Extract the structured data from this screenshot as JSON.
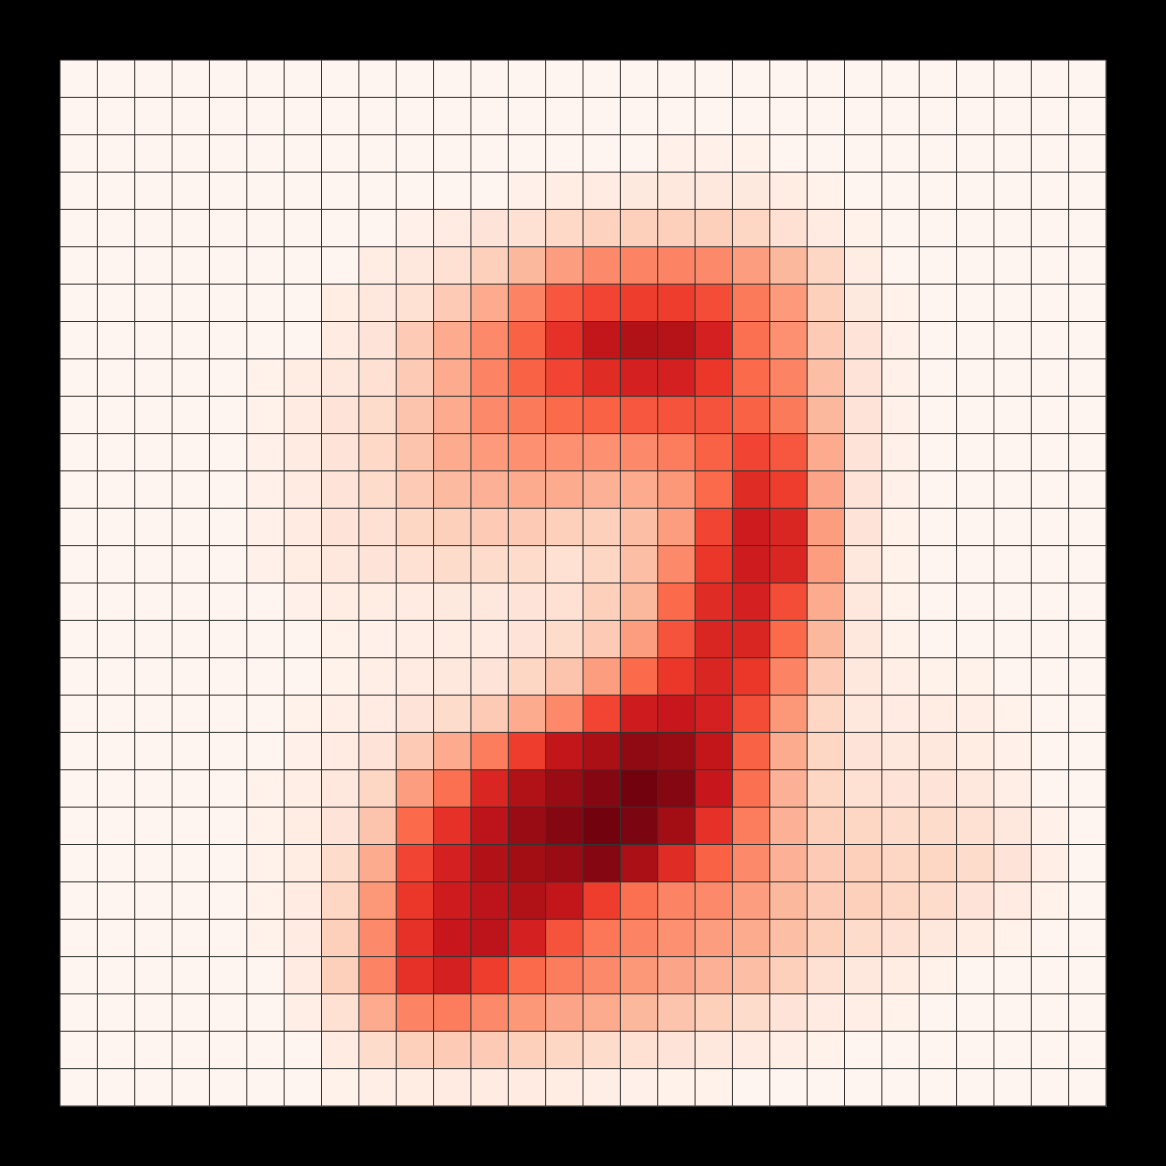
{
  "chart_data": {
    "type": "heatmap",
    "title": "",
    "xlabel": "",
    "ylabel": "",
    "rows": 28,
    "cols": 28,
    "grid": true,
    "colormap": "Reds",
    "value_range": [
      0,
      1
    ],
    "values": [
      [
        0,
        0,
        0,
        0,
        0,
        0,
        0,
        0,
        0,
        0,
        0,
        0,
        0,
        0,
        0,
        0,
        0,
        0,
        0,
        0,
        0,
        0,
        0,
        0,
        0,
        0,
        0,
        0
      ],
      [
        0,
        0,
        0,
        0,
        0,
        0,
        0,
        0,
        0,
        0,
        0,
        0,
        0,
        0,
        0,
        0,
        0,
        0,
        0,
        0,
        0,
        0,
        0,
        0,
        0,
        0,
        0,
        0
      ],
      [
        0,
        0,
        0,
        0,
        0,
        0,
        0,
        0,
        0,
        0,
        0,
        0,
        0,
        0,
        0,
        0,
        0.03,
        0.03,
        0.02,
        0,
        0,
        0,
        0,
        0,
        0,
        0,
        0,
        0
      ],
      [
        0,
        0,
        0,
        0,
        0,
        0,
        0,
        0,
        0,
        0,
        0,
        0,
        0.03,
        0.05,
        0.06,
        0.07,
        0.08,
        0.08,
        0.07,
        0.05,
        0.02,
        0,
        0,
        0,
        0,
        0,
        0,
        0
      ],
      [
        0,
        0,
        0,
        0,
        0,
        0,
        0,
        0,
        0,
        0.03,
        0.06,
        0.1,
        0.12,
        0.15,
        0.17,
        0.18,
        0.18,
        0.18,
        0.16,
        0.12,
        0.06,
        0.02,
        0,
        0,
        0,
        0,
        0,
        0
      ],
      [
        0,
        0,
        0,
        0,
        0,
        0,
        0,
        0,
        0.05,
        0.08,
        0.12,
        0.18,
        0.26,
        0.34,
        0.4,
        0.42,
        0.42,
        0.4,
        0.34,
        0.26,
        0.16,
        0.05,
        0,
        0,
        0,
        0,
        0,
        0
      ],
      [
        0,
        0,
        0,
        0,
        0,
        0,
        0,
        0.05,
        0.08,
        0.12,
        0.2,
        0.3,
        0.42,
        0.55,
        0.6,
        0.62,
        0.62,
        0.58,
        0.45,
        0.35,
        0.18,
        0.07,
        0.02,
        0,
        0,
        0,
        0,
        0
      ],
      [
        0,
        0,
        0,
        0,
        0,
        0,
        0,
        0.06,
        0.1,
        0.2,
        0.3,
        0.4,
        0.52,
        0.66,
        0.78,
        0.84,
        0.82,
        0.72,
        0.48,
        0.38,
        0.2,
        0.1,
        0.03,
        0,
        0,
        0,
        0,
        0
      ],
      [
        0,
        0,
        0,
        0,
        0,
        0.02,
        0.05,
        0.08,
        0.12,
        0.2,
        0.3,
        0.42,
        0.52,
        0.6,
        0.68,
        0.72,
        0.72,
        0.64,
        0.5,
        0.42,
        0.24,
        0.1,
        0.03,
        0,
        0,
        0,
        0,
        0
      ],
      [
        0,
        0,
        0,
        0,
        0,
        0.02,
        0.06,
        0.1,
        0.14,
        0.22,
        0.3,
        0.4,
        0.45,
        0.5,
        0.52,
        0.55,
        0.56,
        0.56,
        0.52,
        0.45,
        0.26,
        0.1,
        0.03,
        0,
        0,
        0,
        0,
        0
      ],
      [
        0,
        0,
        0,
        0,
        0,
        0.03,
        0.06,
        0.1,
        0.15,
        0.22,
        0.3,
        0.35,
        0.38,
        0.38,
        0.38,
        0.4,
        0.44,
        0.52,
        0.6,
        0.55,
        0.3,
        0.1,
        0.03,
        0,
        0,
        0,
        0,
        0
      ],
      [
        0,
        0,
        0,
        0,
        0,
        0.03,
        0.06,
        0.1,
        0.14,
        0.2,
        0.25,
        0.28,
        0.3,
        0.3,
        0.28,
        0.3,
        0.36,
        0.5,
        0.68,
        0.62,
        0.32,
        0.1,
        0.03,
        0,
        0,
        0,
        0,
        0
      ],
      [
        0,
        0,
        0,
        0,
        0,
        0.03,
        0.06,
        0.1,
        0.12,
        0.16,
        0.18,
        0.2,
        0.2,
        0.18,
        0.18,
        0.24,
        0.34,
        0.6,
        0.74,
        0.7,
        0.34,
        0.1,
        0.02,
        0,
        0,
        0,
        0,
        0
      ],
      [
        0,
        0,
        0,
        0,
        0,
        0.03,
        0.05,
        0.08,
        0.1,
        0.12,
        0.14,
        0.14,
        0.14,
        0.12,
        0.16,
        0.24,
        0.4,
        0.64,
        0.74,
        0.7,
        0.34,
        0.08,
        0.02,
        0,
        0,
        0,
        0,
        0
      ],
      [
        0,
        0,
        0,
        0,
        0,
        0,
        0.03,
        0.05,
        0.05,
        0.06,
        0.07,
        0.08,
        0.1,
        0.12,
        0.18,
        0.26,
        0.5,
        0.68,
        0.72,
        0.58,
        0.3,
        0.08,
        0.02,
        0,
        0,
        0,
        0,
        0
      ],
      [
        0,
        0,
        0,
        0,
        0,
        0,
        0,
        0.02,
        0.03,
        0.04,
        0.05,
        0.06,
        0.1,
        0.14,
        0.2,
        0.34,
        0.56,
        0.7,
        0.7,
        0.5,
        0.26,
        0.08,
        0.02,
        0,
        0,
        0,
        0,
        0
      ],
      [
        0,
        0,
        0,
        0,
        0,
        0,
        0,
        0.02,
        0.04,
        0.06,
        0.08,
        0.1,
        0.16,
        0.22,
        0.34,
        0.5,
        0.64,
        0.7,
        0.64,
        0.42,
        0.2,
        0.08,
        0.04,
        0.02,
        0.02,
        0,
        0,
        0
      ],
      [
        0,
        0,
        0,
        0,
        0,
        0,
        0.02,
        0.04,
        0.06,
        0.1,
        0.14,
        0.2,
        0.3,
        0.4,
        0.6,
        0.74,
        0.76,
        0.72,
        0.58,
        0.36,
        0.16,
        0.08,
        0.06,
        0.05,
        0.04,
        0.02,
        0,
        0
      ],
      [
        0,
        0,
        0,
        0,
        0,
        0,
        0.03,
        0.06,
        0.1,
        0.2,
        0.3,
        0.44,
        0.62,
        0.78,
        0.86,
        0.92,
        0.9,
        0.78,
        0.52,
        0.3,
        0.16,
        0.1,
        0.08,
        0.08,
        0.05,
        0.03,
        0,
        0
      ],
      [
        0,
        0,
        0,
        0,
        0,
        0.02,
        0.04,
        0.08,
        0.16,
        0.34,
        0.48,
        0.7,
        0.84,
        0.9,
        0.94,
        0.98,
        0.94,
        0.76,
        0.48,
        0.28,
        0.16,
        0.12,
        0.1,
        0.1,
        0.08,
        0.04,
        0,
        0
      ],
      [
        0,
        0,
        0,
        0,
        0,
        0.02,
        0.05,
        0.1,
        0.22,
        0.5,
        0.66,
        0.8,
        0.9,
        0.94,
        0.98,
        0.96,
        0.88,
        0.66,
        0.44,
        0.28,
        0.18,
        0.16,
        0.14,
        0.14,
        0.12,
        0.08,
        0.03,
        0
      ],
      [
        0,
        0,
        0,
        0,
        0,
        0.02,
        0.05,
        0.14,
        0.3,
        0.6,
        0.72,
        0.84,
        0.88,
        0.9,
        0.94,
        0.86,
        0.68,
        0.52,
        0.4,
        0.28,
        0.2,
        0.18,
        0.16,
        0.16,
        0.14,
        0.1,
        0.04,
        0
      ],
      [
        0,
        0,
        0,
        0,
        0,
        0.02,
        0.06,
        0.16,
        0.36,
        0.64,
        0.74,
        0.8,
        0.84,
        0.78,
        0.62,
        0.48,
        0.42,
        0.4,
        0.34,
        0.26,
        0.2,
        0.18,
        0.16,
        0.14,
        0.1,
        0.06,
        0.02,
        0
      ],
      [
        0,
        0,
        0,
        0,
        0,
        0.02,
        0.06,
        0.18,
        0.4,
        0.66,
        0.76,
        0.8,
        0.72,
        0.56,
        0.46,
        0.42,
        0.38,
        0.34,
        0.3,
        0.24,
        0.18,
        0.14,
        0.12,
        0.08,
        0.05,
        0.02,
        0,
        0
      ],
      [
        0,
        0,
        0,
        0,
        0,
        0,
        0.06,
        0.18,
        0.42,
        0.66,
        0.72,
        0.62,
        0.5,
        0.44,
        0.4,
        0.36,
        0.32,
        0.28,
        0.24,
        0.18,
        0.12,
        0.08,
        0.05,
        0.02,
        0,
        0,
        0,
        0
      ],
      [
        0,
        0,
        0,
        0,
        0,
        0,
        0.04,
        0.12,
        0.3,
        0.42,
        0.44,
        0.4,
        0.36,
        0.32,
        0.3,
        0.26,
        0.22,
        0.18,
        0.14,
        0.1,
        0.06,
        0.04,
        0.02,
        0,
        0,
        0,
        0,
        0
      ],
      [
        0,
        0,
        0,
        0,
        0,
        0,
        0,
        0.06,
        0.14,
        0.18,
        0.2,
        0.2,
        0.18,
        0.16,
        0.14,
        0.12,
        0.1,
        0.08,
        0.06,
        0.04,
        0.02,
        0,
        0,
        0,
        0,
        0,
        0,
        0
      ],
      [
        0,
        0,
        0,
        0,
        0,
        0,
        0,
        0.02,
        0.04,
        0.05,
        0.06,
        0.06,
        0.06,
        0.05,
        0.04,
        0.03,
        0.02,
        0.02,
        0,
        0,
        0,
        0,
        0,
        0,
        0,
        0,
        0,
        0
      ]
    ]
  },
  "colors": {
    "background": "#000000",
    "gridline": "#333333",
    "low": "#fff5f0",
    "high": "#67000d"
  }
}
